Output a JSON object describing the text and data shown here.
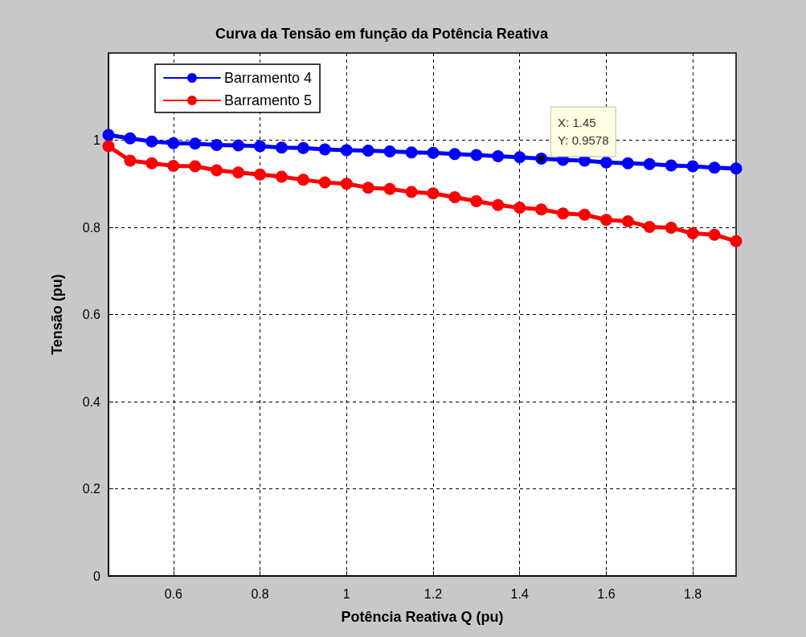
{
  "chart_data": {
    "type": "line",
    "title": "Curva da Tensão em função da Potência Reativa",
    "xlabel": "Potência Reativa Q (pu)",
    "ylabel": "Tensão (pu)",
    "x": [
      0.45,
      0.5,
      0.55,
      0.6,
      0.65,
      0.7,
      0.75,
      0.8,
      0.85,
      0.9,
      0.95,
      1.0,
      1.05,
      1.1,
      1.15,
      1.2,
      1.25,
      1.3,
      1.35,
      1.4,
      1.45,
      1.5,
      1.55,
      1.6,
      1.65,
      1.7,
      1.75,
      1.8,
      1.85,
      1.9
    ],
    "series": [
      {
        "name": "Barramento 4",
        "color": "#0000ff",
        "values": [
          1.012,
          1.004,
          0.997,
          0.993,
          0.992,
          0.989,
          0.988,
          0.986,
          0.983,
          0.982,
          0.979,
          0.977,
          0.976,
          0.974,
          0.972,
          0.971,
          0.968,
          0.966,
          0.963,
          0.961,
          0.9578,
          0.955,
          0.953,
          0.949,
          0.947,
          0.945,
          0.942,
          0.94,
          0.937,
          0.935
        ]
      },
      {
        "name": "Barramento 5",
        "color": "#ff0000",
        "values": [
          0.986,
          0.953,
          0.947,
          0.941,
          0.94,
          0.931,
          0.926,
          0.921,
          0.916,
          0.909,
          0.903,
          0.9,
          0.891,
          0.888,
          0.881,
          0.878,
          0.869,
          0.86,
          0.851,
          0.845,
          0.841,
          0.832,
          0.829,
          0.817,
          0.814,
          0.801,
          0.799,
          0.786,
          0.783,
          0.768
        ]
      }
    ],
    "xlim": [
      0.45,
      1.9
    ],
    "xticks": [
      0.6,
      0.8,
      1,
      1.2,
      1.4,
      1.6,
      1.8
    ],
    "ylim": [
      0,
      1.2
    ],
    "yticks": [
      0,
      0.2,
      0.4,
      0.6,
      0.8,
      1
    ],
    "annotations": [
      {
        "text": "X: 1.45\nY: 0.9578",
        "x": 1.45,
        "y": 0.9578
      }
    ],
    "grid": true,
    "legend": "top left",
    "marker": "circle",
    "line_style": "solid"
  }
}
